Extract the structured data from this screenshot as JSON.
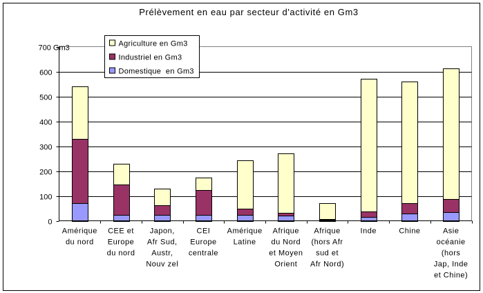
{
  "chart_data": {
    "type": "bar",
    "stacked": true,
    "title": "Prélèvement en eau par secteur d'activité en Gm3",
    "ylabel": "Gm3",
    "y_top_label": "700 Gm3",
    "ylim": [
      0,
      700
    ],
    "ytick_step": 100,
    "grid": true,
    "legend_position": "top-left",
    "categories": [
      [
        "Amérique",
        "du nord"
      ],
      [
        "CEE et",
        "Europe",
        "du nord"
      ],
      [
        "Japon,",
        "Afr Sud,",
        "Austr,",
        "Nouv zel"
      ],
      [
        "CEI",
        "Europe",
        "centrale"
      ],
      [
        "Amérique",
        "Latine"
      ],
      [
        "Afrique",
        "du Nord",
        "et Moyen",
        "Orient"
      ],
      [
        "Afrique",
        "(hors Afr",
        "sud et",
        "Afr Nord)"
      ],
      [
        "Inde"
      ],
      [
        "Chine"
      ],
      [
        "Asie",
        "océanie",
        "(hors",
        "Jap, Inde",
        "et Chine)"
      ]
    ],
    "series": [
      {
        "name": "Domestique  en Gm3",
        "color": "#9999ff",
        "values": [
          70,
          25,
          25,
          25,
          25,
          20,
          5,
          15,
          30,
          35
        ]
      },
      {
        "name": "Industriel en Gm3",
        "color": "#993366",
        "values": [
          258,
          120,
          38,
          100,
          25,
          12,
          2,
          22,
          40,
          52
        ]
      },
      {
        "name": "Agriculture en Gm3",
        "color": "#ffffcc",
        "values": [
          212,
          85,
          65,
          50,
          192,
          240,
          65,
          533,
          490,
          525
        ]
      }
    ],
    "legend_order": [
      "Agriculture en Gm3",
      "Industriel en Gm3",
      "Domestique  en Gm3"
    ]
  }
}
